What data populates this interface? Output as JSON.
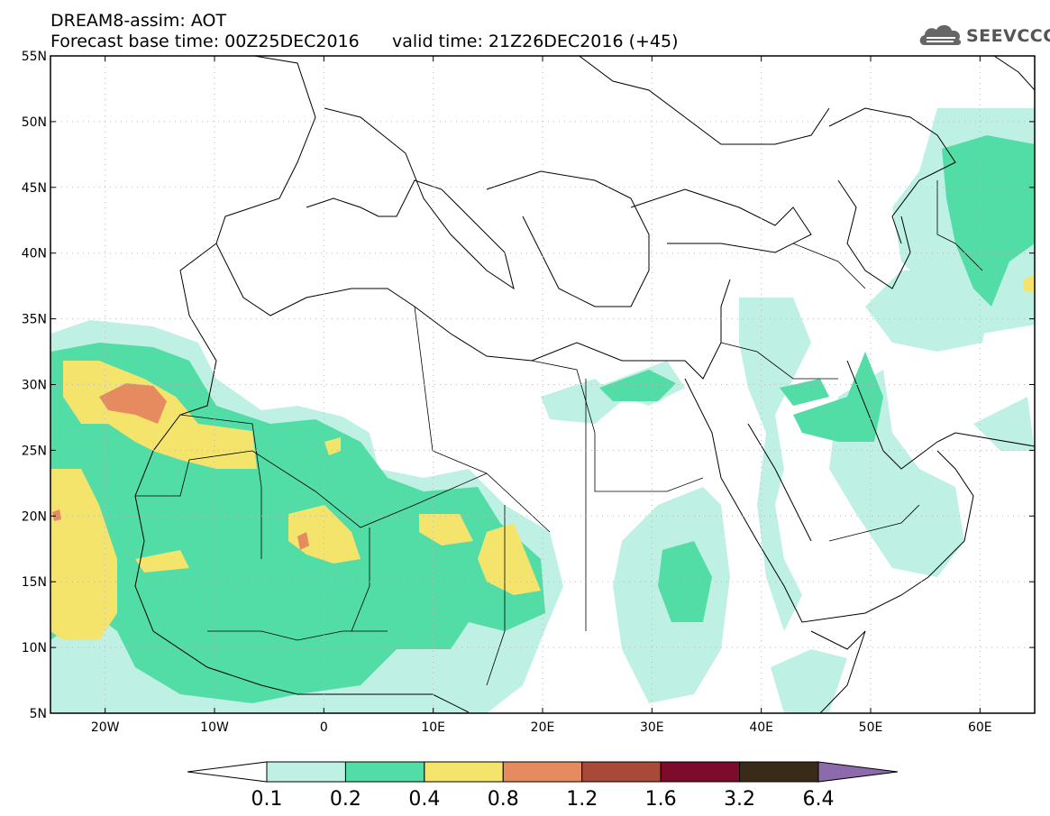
{
  "header": {
    "line1": "DREAM8-assim: AOT",
    "base_label": "Forecast base time: 00Z25DEC2016",
    "valid_label": "valid time: 21Z26DEC2016 (+45)"
  },
  "logo": {
    "text": "SEEVCCC",
    "icon": "cloud-icon"
  },
  "map": {
    "lon_range": [
      -25,
      65
    ],
    "lat_range": [
      5,
      55
    ],
    "gridlines": "dotted",
    "lat_ticks": [
      {
        "v": 55,
        "label": "55N"
      },
      {
        "v": 50,
        "label": "50N"
      },
      {
        "v": 45,
        "label": "45N"
      },
      {
        "v": 40,
        "label": "40N"
      },
      {
        "v": 35,
        "label": "35N"
      },
      {
        "v": 30,
        "label": "30N"
      },
      {
        "v": 25,
        "label": "25N"
      },
      {
        "v": 20,
        "label": "20N"
      },
      {
        "v": 15,
        "label": "15N"
      },
      {
        "v": 10,
        "label": "10N"
      },
      {
        "v": 5,
        "label": "5N"
      }
    ],
    "lon_ticks": [
      {
        "v": -20,
        "label": "20W"
      },
      {
        "v": -10,
        "label": "10W"
      },
      {
        "v": 0,
        "label": "0"
      },
      {
        "v": 10,
        "label": "10E"
      },
      {
        "v": 20,
        "label": "20E"
      },
      {
        "v": 30,
        "label": "30E"
      },
      {
        "v": 40,
        "label": "40E"
      },
      {
        "v": 50,
        "label": "50E"
      },
      {
        "v": 60,
        "label": "60E"
      }
    ]
  },
  "colorbar": {
    "colors": [
      "#ffffff",
      "#bff0e4",
      "#52dca6",
      "#f5e46c",
      "#e68a60",
      "#a94a38",
      "#7e0a2c",
      "#3a2a18",
      "#8d6aac"
    ],
    "labels": [
      "0.1",
      "0.2",
      "0.4",
      "0.8",
      "1.2",
      "1.6",
      "3.2",
      "6.4"
    ]
  }
}
